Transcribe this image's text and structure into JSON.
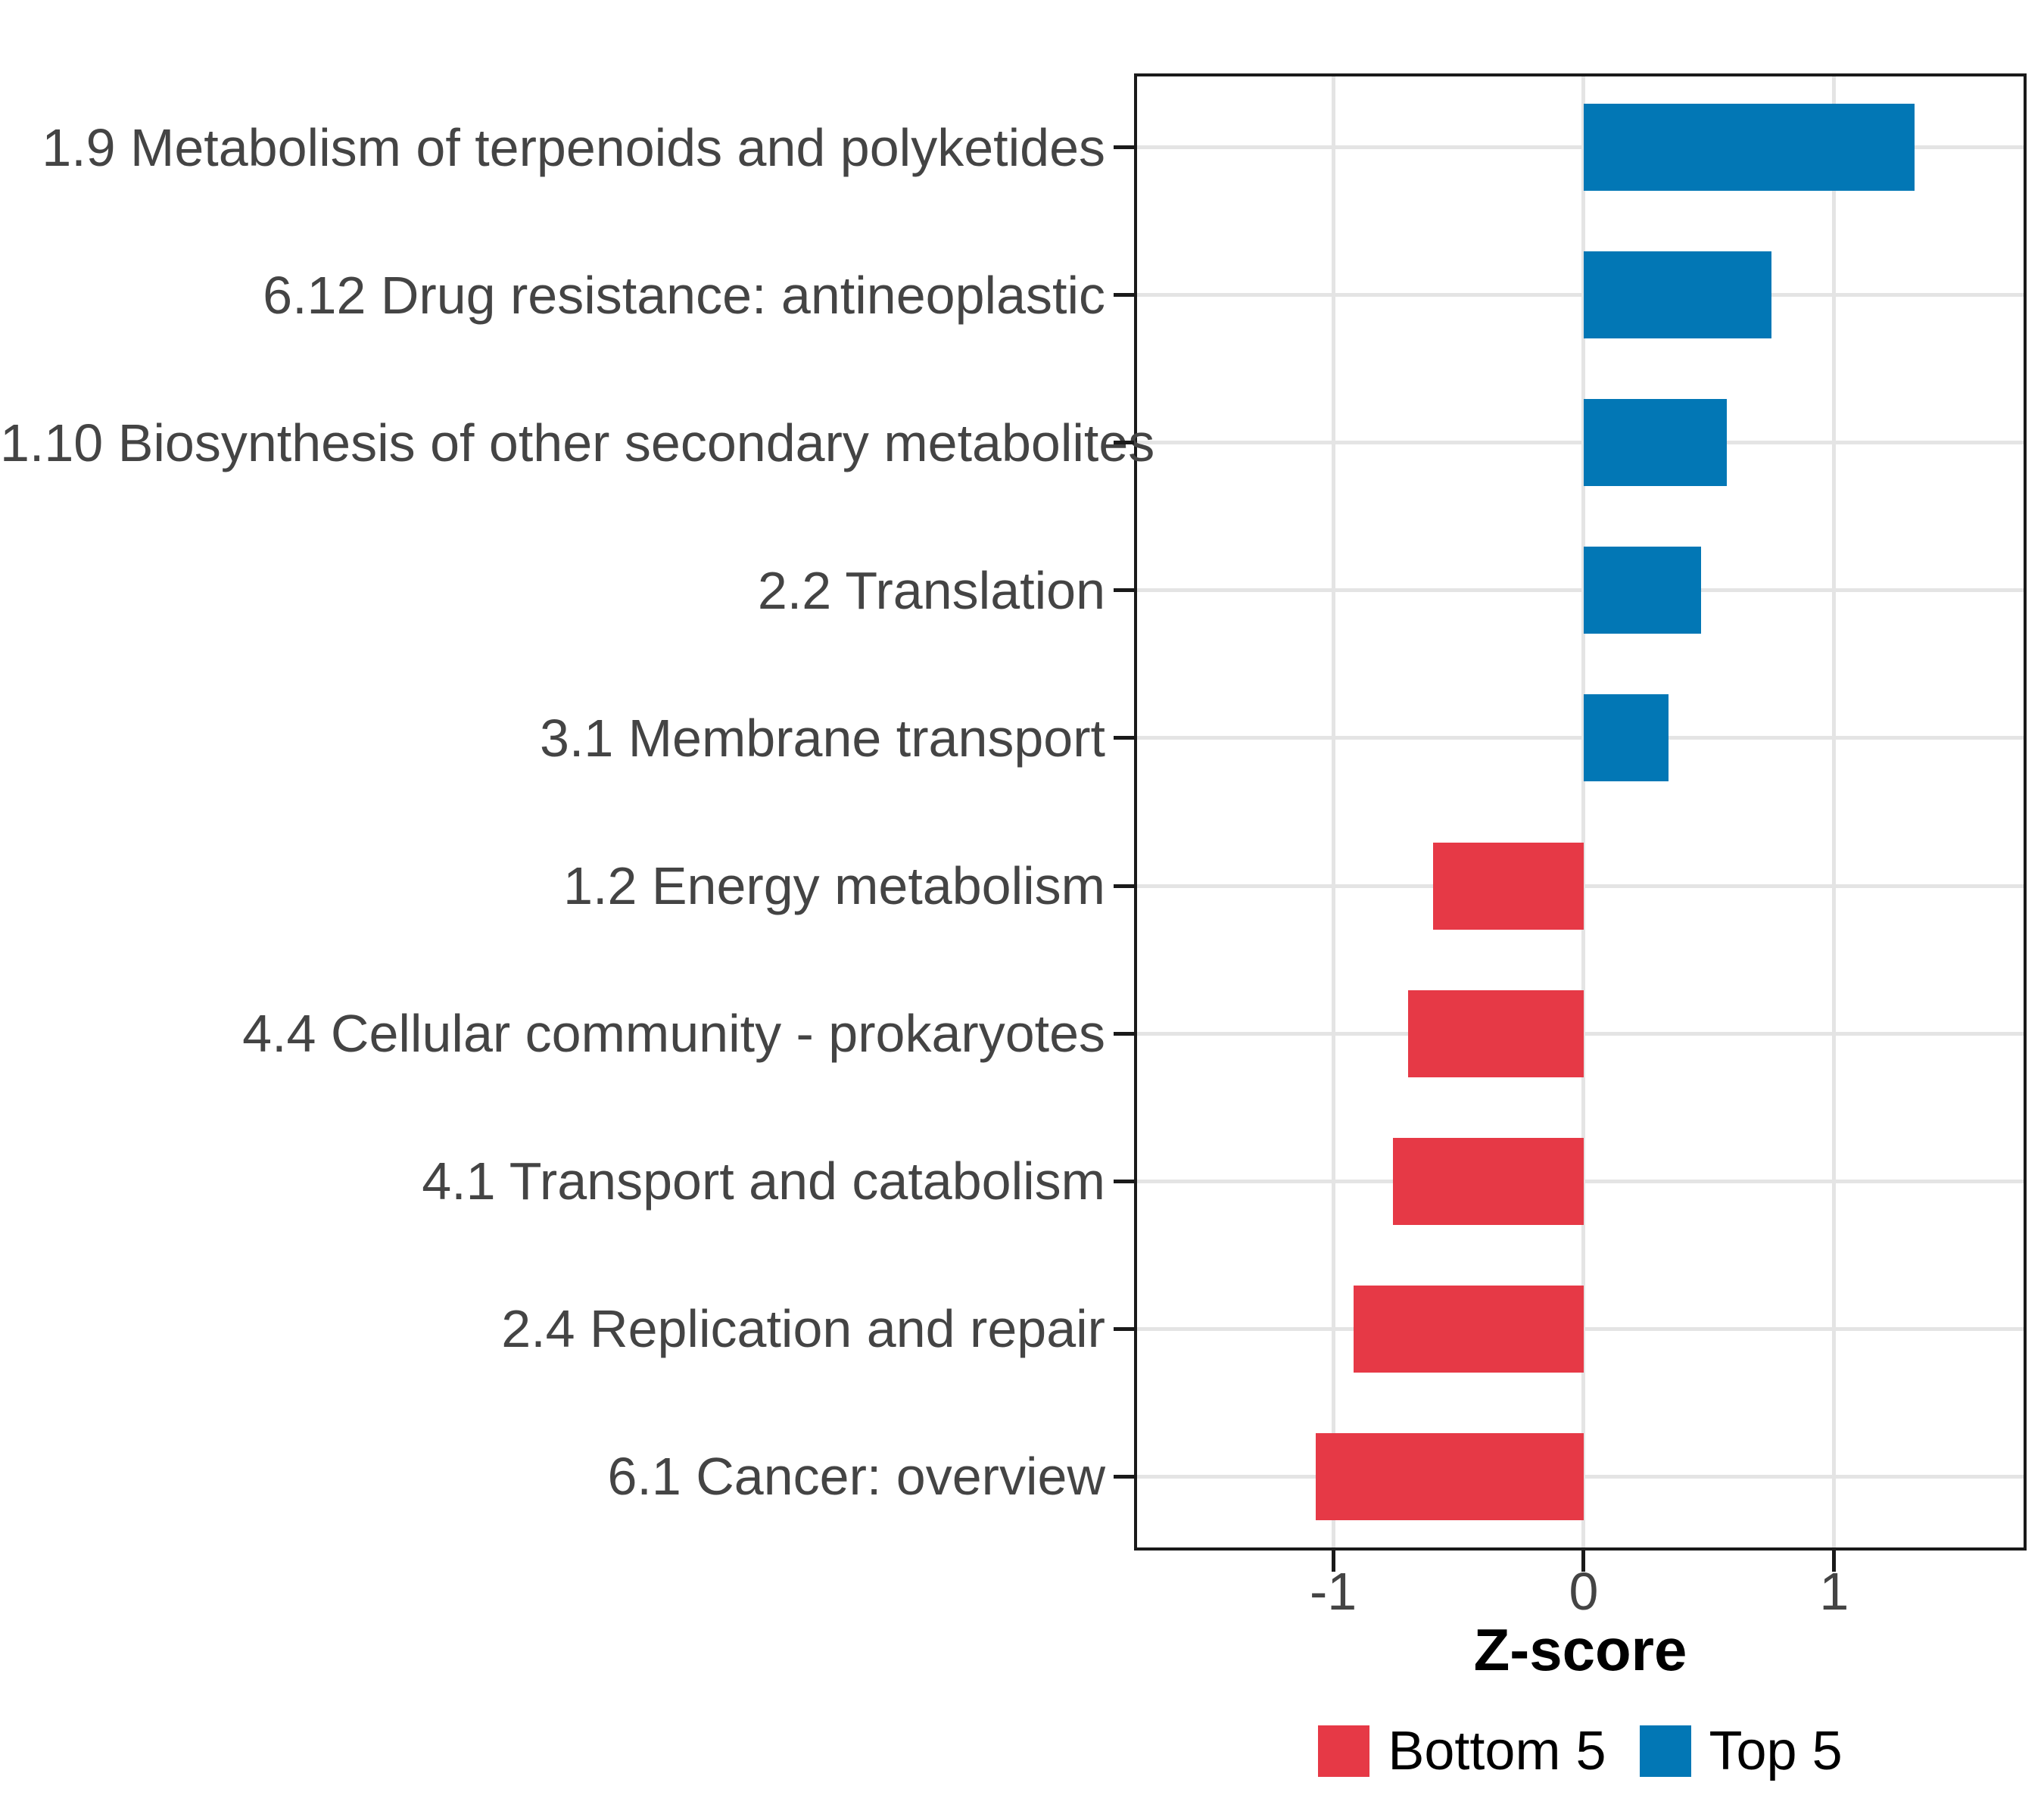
{
  "chart_data": {
    "type": "bar",
    "orientation": "horizontal",
    "title": "",
    "xlabel": "Z-score",
    "ylabel": "",
    "items": [
      {
        "label": "1.9 Metabolism of terpenoids and polyketides",
        "value": 1.32,
        "group": "Top 5"
      },
      {
        "label": "6.12 Drug resistance: antineoplastic",
        "value": 0.75,
        "group": "Top 5"
      },
      {
        "label": "1.10 Biosynthesis of other secondary metabolites",
        "value": 0.57,
        "group": "Top 5"
      },
      {
        "label": "2.2 Translation",
        "value": 0.47,
        "group": "Top 5"
      },
      {
        "label": "3.1 Membrane transport",
        "value": 0.34,
        "group": "Top 5"
      },
      {
        "label": "1.2 Energy metabolism",
        "value": -0.6,
        "group": "Bottom 5"
      },
      {
        "label": "4.4 Cellular community - prokaryotes",
        "value": -0.7,
        "group": "Bottom 5"
      },
      {
        "label": "4.1 Transport and catabolism",
        "value": -0.76,
        "group": "Bottom 5"
      },
      {
        "label": "2.4 Replication and repair",
        "value": -0.92,
        "group": "Bottom 5"
      },
      {
        "label": "6.1 Cancer: overview",
        "value": -1.07,
        "group": "Bottom 5"
      }
    ],
    "xlim": [
      -1.795,
      1.768
    ],
    "xticks": [
      -1,
      0,
      1
    ],
    "xtick_labels": [
      "-1",
      "0",
      "1"
    ],
    "grid": true,
    "colors": {
      "Bottom 5": "#E63946",
      "Top 5": "#0277B5"
    },
    "legend": {
      "position": "bottom-center",
      "entries": [
        {
          "label": "Bottom 5",
          "color": "#E63946"
        },
        {
          "label": "Top 5",
          "color": "#0277B5"
        }
      ]
    },
    "style_colors": {
      "gridline": "#E4E4E4",
      "panel_border": "#1a1a1a",
      "axis_text": "#444444",
      "title_text": "#000000"
    }
  }
}
